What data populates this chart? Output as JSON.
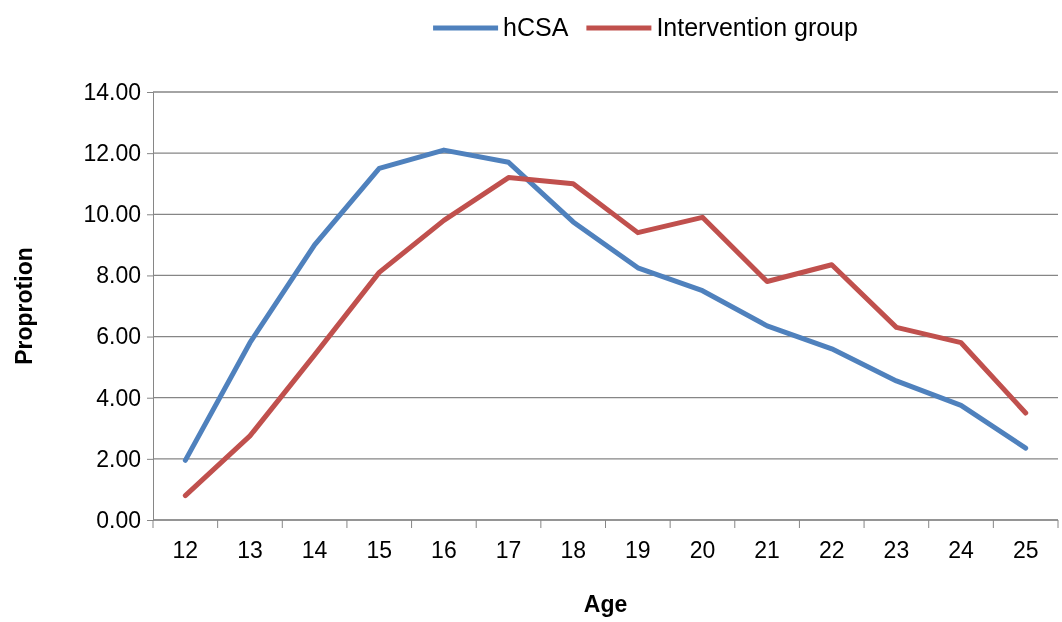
{
  "chart_data": {
    "type": "line",
    "xlabel": "Age",
    "ylabel": "Proprotion",
    "categories": [
      "12",
      "13",
      "14",
      "15",
      "16",
      "17",
      "18",
      "19",
      "20",
      "21",
      "22",
      "23",
      "24",
      "25"
    ],
    "series": [
      {
        "name": "hCSA",
        "color": "#4f81bd",
        "values": [
          1.95,
          5.8,
          9.0,
          11.5,
          12.1,
          11.7,
          9.75,
          8.25,
          7.5,
          6.35,
          5.6,
          4.55,
          3.75,
          2.35
        ]
      },
      {
        "name": "Intervention group",
        "color": "#c0504d",
        "values": [
          0.8,
          2.75,
          5.4,
          8.1,
          9.8,
          11.2,
          11.0,
          9.4,
          9.9,
          7.8,
          8.35,
          6.3,
          5.8,
          3.5
        ]
      }
    ],
    "ylim": [
      0,
      14
    ],
    "yticks": [
      {
        "value": 0,
        "label": "0.00"
      },
      {
        "value": 2,
        "label": "2.00"
      },
      {
        "value": 4,
        "label": "4.00"
      },
      {
        "value": 6,
        "label": "6.00"
      },
      {
        "value": 8,
        "label": "8.00"
      },
      {
        "value": 10,
        "label": "10.00"
      },
      {
        "value": 12,
        "label": "12.00"
      },
      {
        "value": 14,
        "label": "14.00"
      }
    ],
    "grid": "y",
    "legend": "top",
    "marker": "none",
    "line_style": "solid"
  }
}
